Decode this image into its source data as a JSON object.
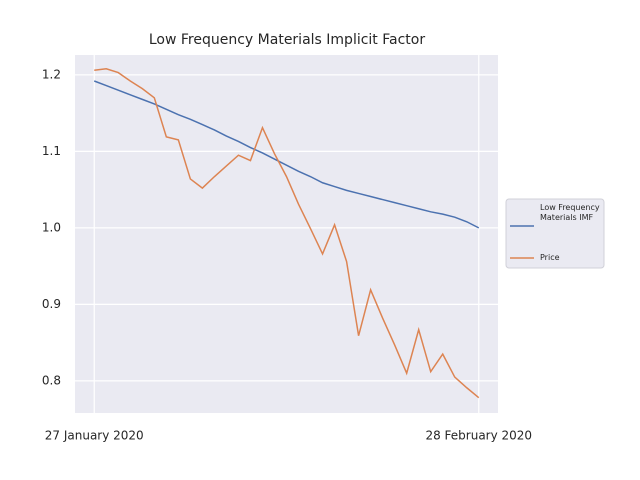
{
  "chart_data": {
    "type": "line",
    "title": "Low Frequency Materials Implicit Factor",
    "x": [
      "2020-01-27",
      "2020-01-28",
      "2020-01-29",
      "2020-01-30",
      "2020-01-31",
      "2020-02-01",
      "2020-02-02",
      "2020-02-03",
      "2020-02-04",
      "2020-02-05",
      "2020-02-06",
      "2020-02-07",
      "2020-02-08",
      "2020-02-09",
      "2020-02-10",
      "2020-02-11",
      "2020-02-12",
      "2020-02-13",
      "2020-02-14",
      "2020-02-15",
      "2020-02-16",
      "2020-02-17",
      "2020-02-18",
      "2020-02-19",
      "2020-02-20",
      "2020-02-21",
      "2020-02-22",
      "2020-02-23",
      "2020-02-24",
      "2020-02-25",
      "2020-02-26",
      "2020-02-27",
      "2020-02-28"
    ],
    "series": [
      {
        "name": "Low Frequency Materials IMF",
        "color": "#4c72b0",
        "values": [
          1.192,
          1.186,
          1.18,
          1.174,
          1.168,
          1.162,
          1.155,
          1.148,
          1.142,
          1.135,
          1.128,
          1.12,
          1.113,
          1.105,
          1.098,
          1.09,
          1.082,
          1.074,
          1.067,
          1.059,
          1.054,
          1.049,
          1.045,
          1.041,
          1.037,
          1.033,
          1.029,
          1.025,
          1.021,
          1.018,
          1.014,
          1.008,
          1.0
        ]
      },
      {
        "name": "Price",
        "color": "#dd8452",
        "values": [
          1.206,
          1.208,
          1.203,
          1.192,
          1.182,
          1.17,
          1.119,
          1.115,
          1.064,
          1.052,
          1.067,
          1.081,
          1.095,
          1.088,
          1.131,
          1.097,
          1.067,
          1.031,
          0.999,
          0.966,
          1.004,
          0.956,
          0.859,
          0.919,
          0.882,
          0.847,
          0.81,
          0.867,
          0.812,
          0.835,
          0.805,
          0.791,
          0.778
        ]
      }
    ],
    "xticks": [
      {
        "value": "2020-01-27",
        "label": "27 January 2020"
      },
      {
        "value": "2020-02-28",
        "label": "28 February 2020"
      }
    ],
    "ylim": [
      0.758,
      1.226
    ],
    "yticks": [
      {
        "value": 0.8,
        "label": "0.8"
      },
      {
        "value": 0.9,
        "label": "0.9"
      },
      {
        "value": 1.0,
        "label": "1.0"
      },
      {
        "value": 1.1,
        "label": "1.1"
      },
      {
        "value": 1.2,
        "label": "1.2"
      }
    ],
    "grid": true,
    "legend": "outside-right"
  }
}
